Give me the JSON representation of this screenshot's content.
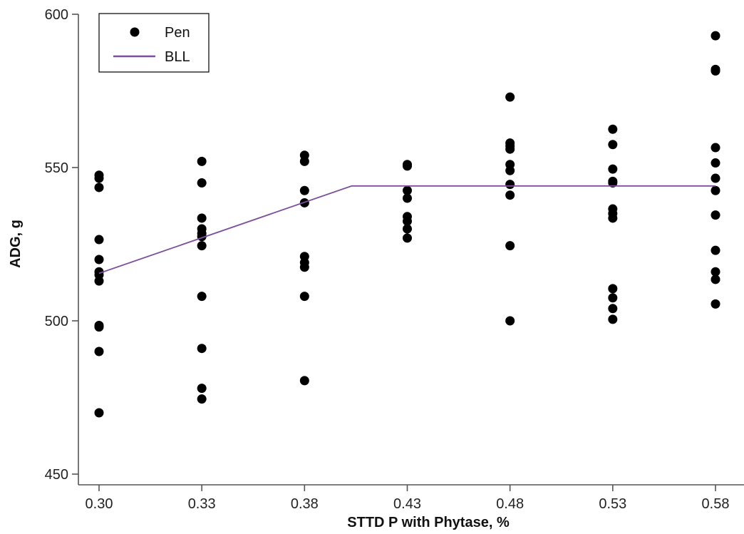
{
  "chart_data": {
    "type": "scatter",
    "xlabel": "STTD P with Phytase, %",
    "ylabel": "ADG, g",
    "x_ticks": [
      "0.30",
      "0.33",
      "0.38",
      "0.43",
      "0.48",
      "0.53",
      "0.58"
    ],
    "y_ticks": [
      "450",
      "500",
      "550",
      "600"
    ],
    "ylim": [
      450,
      600
    ],
    "grid": false,
    "legend_position": "top-left",
    "series": [
      {
        "name": "Pen",
        "kind": "points",
        "color": "#000000",
        "points": [
          {
            "x": "0.30",
            "y": 547.5
          },
          {
            "x": "0.30",
            "y": 546.5
          },
          {
            "x": "0.30",
            "y": 543.5
          },
          {
            "x": "0.30",
            "y": 526.5
          },
          {
            "x": "0.30",
            "y": 520
          },
          {
            "x": "0.30",
            "y": 516
          },
          {
            "x": "0.30",
            "y": 515
          },
          {
            "x": "0.30",
            "y": 513
          },
          {
            "x": "0.30",
            "y": 498.5
          },
          {
            "x": "0.30",
            "y": 498
          },
          {
            "x": "0.30",
            "y": 490
          },
          {
            "x": "0.30",
            "y": 470
          },
          {
            "x": "0.33",
            "y": 552
          },
          {
            "x": "0.33",
            "y": 545
          },
          {
            "x": "0.33",
            "y": 533.5
          },
          {
            "x": "0.33",
            "y": 530
          },
          {
            "x": "0.33",
            "y": 528.5
          },
          {
            "x": "0.33",
            "y": 527.5
          },
          {
            "x": "0.33",
            "y": 524.5
          },
          {
            "x": "0.33",
            "y": 508
          },
          {
            "x": "0.33",
            "y": 491
          },
          {
            "x": "0.33",
            "y": 478
          },
          {
            "x": "0.33",
            "y": 474.5
          },
          {
            "x": "0.38",
            "y": 554
          },
          {
            "x": "0.38",
            "y": 552
          },
          {
            "x": "0.38",
            "y": 542.5
          },
          {
            "x": "0.38",
            "y": 538.5
          },
          {
            "x": "0.38",
            "y": 521
          },
          {
            "x": "0.38",
            "y": 519
          },
          {
            "x": "0.38",
            "y": 517.5
          },
          {
            "x": "0.38",
            "y": 508
          },
          {
            "x": "0.38",
            "y": 480.5
          },
          {
            "x": "0.43",
            "y": 551
          },
          {
            "x": "0.43",
            "y": 550.5
          },
          {
            "x": "0.43",
            "y": 542.5
          },
          {
            "x": "0.43",
            "y": 540
          },
          {
            "x": "0.43",
            "y": 534
          },
          {
            "x": "0.43",
            "y": 532.5
          },
          {
            "x": "0.43",
            "y": 530
          },
          {
            "x": "0.43",
            "y": 527
          },
          {
            "x": "0.48",
            "y": 573
          },
          {
            "x": "0.48",
            "y": 558
          },
          {
            "x": "0.48",
            "y": 557
          },
          {
            "x": "0.48",
            "y": 556
          },
          {
            "x": "0.48",
            "y": 551
          },
          {
            "x": "0.48",
            "y": 549
          },
          {
            "x": "0.48",
            "y": 544.5
          },
          {
            "x": "0.48",
            "y": 541
          },
          {
            "x": "0.48",
            "y": 524.5
          },
          {
            "x": "0.48",
            "y": 500
          },
          {
            "x": "0.53",
            "y": 562.5
          },
          {
            "x": "0.53",
            "y": 557.5
          },
          {
            "x": "0.53",
            "y": 549.5
          },
          {
            "x": "0.53",
            "y": 545.5
          },
          {
            "x": "0.53",
            "y": 545
          },
          {
            "x": "0.53",
            "y": 536.5
          },
          {
            "x": "0.53",
            "y": 535
          },
          {
            "x": "0.53",
            "y": 533.5
          },
          {
            "x": "0.53",
            "y": 510.5
          },
          {
            "x": "0.53",
            "y": 507.5
          },
          {
            "x": "0.53",
            "y": 504
          },
          {
            "x": "0.53",
            "y": 500.5
          },
          {
            "x": "0.58",
            "y": 593
          },
          {
            "x": "0.58",
            "y": 582
          },
          {
            "x": "0.58",
            "y": 581.5
          },
          {
            "x": "0.58",
            "y": 556.5
          },
          {
            "x": "0.58",
            "y": 551.5
          },
          {
            "x": "0.58",
            "y": 546.5
          },
          {
            "x": "0.58",
            "y": 542.5
          },
          {
            "x": "0.58",
            "y": 534.5
          },
          {
            "x": "0.58",
            "y": 523
          },
          {
            "x": "0.58",
            "y": 516
          },
          {
            "x": "0.58",
            "y": 513.5
          },
          {
            "x": "0.58",
            "y": 505.5
          }
        ]
      },
      {
        "name": "BLL",
        "kind": "line",
        "color": "#7d4f9e",
        "points": [
          {
            "x": 0.3,
            "y": 515.5
          },
          {
            "x": 0.403,
            "y": 544
          },
          {
            "x": 0.58,
            "y": 544
          }
        ]
      }
    ]
  }
}
